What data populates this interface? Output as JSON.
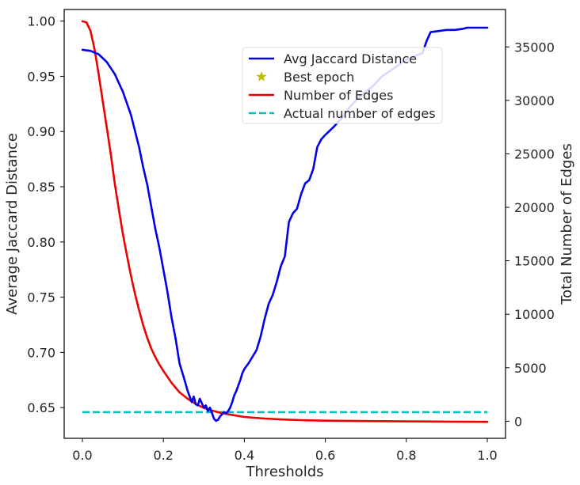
{
  "chart_data": {
    "type": "line",
    "xlabel": "Thresholds",
    "ylabel": "Average Jaccard Distance",
    "y2label": "Total Number of Edges",
    "xlim": [
      -0.045,
      1.045
    ],
    "ylim": [
      0.6222,
      1.0105
    ],
    "y2lim": [
      -1600,
      38500
    ],
    "x_ticks": [
      0.0,
      0.2,
      0.4,
      0.6,
      0.8,
      1.0
    ],
    "x_tick_labels": [
      "0.0",
      "0.2",
      "0.4",
      "0.6",
      "0.8",
      "1.0"
    ],
    "y_ticks": [
      0.65,
      0.7,
      0.75,
      0.8,
      0.85,
      0.9,
      0.95,
      1.0
    ],
    "y_tick_labels": [
      "0.65",
      "0.70",
      "0.75",
      "0.80",
      "0.85",
      "0.90",
      "0.95",
      "1.00"
    ],
    "y2_ticks": [
      0,
      5000,
      10000,
      15000,
      20000,
      25000,
      30000,
      35000
    ],
    "y2_tick_labels": [
      "0",
      "5000",
      "10000",
      "15000",
      "20000",
      "25000",
      "30000",
      "35000"
    ],
    "grid": false,
    "legend_position": "upper-right",
    "colors": {
      "jaccard": "#0000ee",
      "best": "#bfbf00",
      "edges": "#ee0000",
      "actual": "#00bfbf",
      "axis": "#000000"
    },
    "series": [
      {
        "name": "Avg Jaccard Distance",
        "axis": "left",
        "style": "solid",
        "x": [
          0.0,
          0.02,
          0.04,
          0.06,
          0.08,
          0.1,
          0.12,
          0.14,
          0.15,
          0.16,
          0.17,
          0.18,
          0.19,
          0.2,
          0.21,
          0.22,
          0.23,
          0.24,
          0.25,
          0.26,
          0.27,
          0.275,
          0.28,
          0.285,
          0.29,
          0.295,
          0.3,
          0.305,
          0.31,
          0.315,
          0.32,
          0.325,
          0.33,
          0.335,
          0.34,
          0.345,
          0.35,
          0.355,
          0.36,
          0.365,
          0.37,
          0.375,
          0.38,
          0.385,
          0.39,
          0.395,
          0.4,
          0.41,
          0.42,
          0.43,
          0.44,
          0.45,
          0.46,
          0.47,
          0.48,
          0.49,
          0.5,
          0.51,
          0.52,
          0.53,
          0.54,
          0.55,
          0.56,
          0.57,
          0.58,
          0.59,
          0.6,
          0.62,
          0.64,
          0.66,
          0.68,
          0.7,
          0.72,
          0.74,
          0.76,
          0.78,
          0.8,
          0.82,
          0.84,
          0.85,
          0.86,
          0.88,
          0.9,
          0.92,
          0.94,
          0.95,
          0.96,
          1.0
        ],
        "values": [
          0.974,
          0.973,
          0.97,
          0.963,
          0.952,
          0.936,
          0.915,
          0.886,
          0.868,
          0.852,
          0.832,
          0.812,
          0.795,
          0.775,
          0.755,
          0.732,
          0.713,
          0.69,
          0.678,
          0.665,
          0.655,
          0.66,
          0.653,
          0.652,
          0.658,
          0.654,
          0.65,
          0.652,
          0.647,
          0.65,
          0.645,
          0.64,
          0.638,
          0.639,
          0.642,
          0.644,
          0.646,
          0.645,
          0.647,
          0.65,
          0.655,
          0.661,
          0.665,
          0.67,
          0.675,
          0.681,
          0.685,
          0.69,
          0.696,
          0.702,
          0.714,
          0.73,
          0.744,
          0.752,
          0.764,
          0.778,
          0.787,
          0.818,
          0.826,
          0.83,
          0.843,
          0.853,
          0.856,
          0.866,
          0.886,
          0.893,
          0.897,
          0.904,
          0.912,
          0.922,
          0.93,
          0.936,
          0.942,
          0.95,
          0.955,
          0.96,
          0.965,
          0.968,
          0.971,
          0.982,
          0.99,
          0.991,
          0.992,
          0.992,
          0.993,
          0.994,
          0.994,
          0.994
        ]
      },
      {
        "name": "Best epoch",
        "axis": "left",
        "style": "marker",
        "x": [],
        "values": []
      },
      {
        "name": "Number of Edges",
        "axis": "right",
        "style": "solid",
        "x": [
          0.0,
          0.01,
          0.02,
          0.03,
          0.04,
          0.05,
          0.06,
          0.07,
          0.08,
          0.09,
          0.1,
          0.11,
          0.12,
          0.13,
          0.14,
          0.15,
          0.16,
          0.17,
          0.18,
          0.19,
          0.2,
          0.22,
          0.24,
          0.26,
          0.28,
          0.3,
          0.32,
          0.34,
          0.36,
          0.38,
          0.4,
          0.45,
          0.5,
          0.55,
          0.6,
          0.7,
          0.8,
          0.9,
          1.0
        ],
        "values": [
          37400,
          37300,
          36500,
          34800,
          32500,
          30000,
          27500,
          25000,
          22200,
          19800,
          17500,
          15500,
          13600,
          11900,
          10400,
          9000,
          7800,
          6800,
          6000,
          5300,
          4700,
          3600,
          2700,
          2100,
          1600,
          1250,
          1000,
          800,
          650,
          520,
          400,
          250,
          150,
          90,
          50,
          10,
          -20,
          -40,
          -60
        ]
      },
      {
        "name": "Actual number of edges",
        "axis": "right",
        "style": "dashed",
        "x": [
          0.0,
          1.0
        ],
        "values": [
          850,
          850
        ]
      }
    ]
  }
}
